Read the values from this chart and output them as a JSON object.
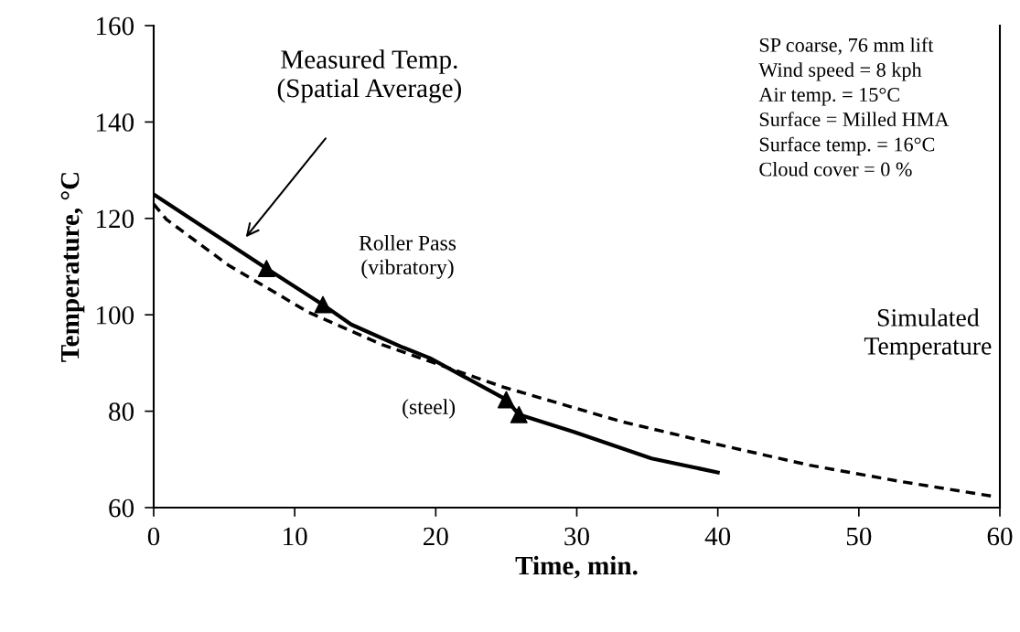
{
  "chart_data": {
    "type": "line",
    "xlabel": "Time, min.",
    "ylabel": "Temperature, °C",
    "xlim": [
      0,
      60
    ],
    "xticks": [
      0,
      10,
      20,
      30,
      40,
      50,
      60
    ],
    "ylim": [
      60,
      160
    ],
    "yticks": [
      60,
      80,
      100,
      120,
      140,
      160
    ],
    "grid": false,
    "legend": false,
    "series": [
      {
        "color": "#000000",
        "line_style": "solid",
        "marker": "none",
        "x": [
          0,
          8,
          12,
          14,
          17.7,
          19.6,
          25,
          25.9,
          29.8,
          35.3,
          40
        ],
        "values": [
          125,
          109.6,
          102.1,
          98,
          93.2,
          91,
          82.4,
          79.3,
          75.7,
          70.2,
          67.3
        ]
      },
      {
        "color": "#000000",
        "line_style": "dashed",
        "marker": "none",
        "x": [
          0,
          0.9,
          5.3,
          11,
          16.2,
          20.5,
          24.8,
          33.1,
          40,
          46.5,
          52.8,
          59.4
        ],
        "values": [
          123,
          119.8,
          110.3,
          100.5,
          93.8,
          89.4,
          85,
          77.9,
          73.1,
          68.8,
          65.5,
          62.4
        ]
      },
      {
        "type": "scatter",
        "color": "#000000",
        "marker": "triangle",
        "x": [
          8,
          12,
          25,
          25.9
        ],
        "values": [
          109.6,
          102.1,
          82.4,
          79.3
        ]
      }
    ],
    "annotations": [
      "Measured Temp.\n(Spatial Average)",
      "Roller Pass\n(vibratory)",
      "(steel)",
      "SP coarse, 76 mm lift\nWind speed = 8 kph\nAir temp. = 15°C\nSurface = Milled HMA\nSurface temp. = 16°C\nCloud cover = 0 %",
      "Simulated\nTemperature"
    ]
  }
}
